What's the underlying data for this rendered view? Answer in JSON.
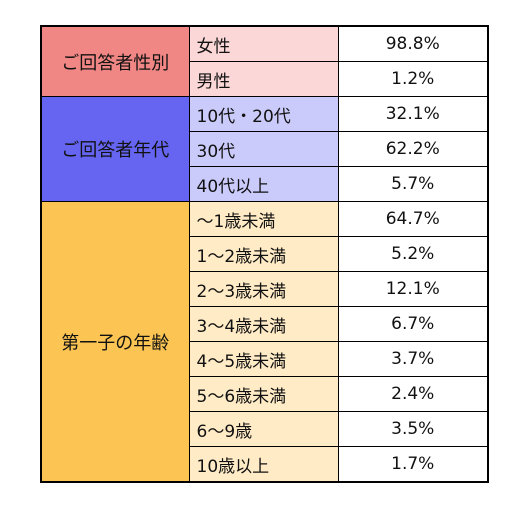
{
  "sections": [
    {
      "title": "ご回答者性別",
      "color": "#f08785",
      "row_color": "#fbd7d7",
      "rows": [
        {
          "label": "女性",
          "value": "98.8%"
        },
        {
          "label": "男性",
          "value": "1.2%"
        }
      ]
    },
    {
      "title": "ご回答者年代",
      "color": "#6565f2",
      "row_color": "#cbcbfb",
      "rows": [
        {
          "label": "10代・20代",
          "value": "32.1%"
        },
        {
          "label": "30代",
          "value": "62.2%"
        },
        {
          "label": "40代以上",
          "value": "5.7%"
        }
      ]
    },
    {
      "title": "第一子の年齢",
      "color": "#fbc453",
      "row_color": "#ffebc6",
      "rows": [
        {
          "label": "～1歳未満",
          "value": "64.7%"
        },
        {
          "label": "1～2歳未満",
          "value": "5.2%"
        },
        {
          "label": "2～3歳未満",
          "value": "12.1%"
        },
        {
          "label": "3～4歳未満",
          "value": "6.7%"
        },
        {
          "label": "4～5歳未満",
          "value": "3.7%"
        },
        {
          "label": "5～6歳未満",
          "value": "2.4%"
        },
        {
          "label": "6～9歳",
          "value": "3.5%"
        },
        {
          "label": "10歳以上",
          "value": "1.7%"
        }
      ]
    }
  ]
}
